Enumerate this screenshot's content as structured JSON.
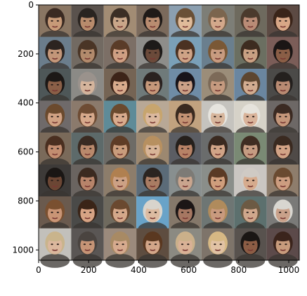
{
  "image": {
    "description_kind": "grid of generated face samples",
    "grid": {
      "rows": 8,
      "cols": 8
    }
  },
  "axes": {
    "x_ticks": [
      {
        "value": 0,
        "label": "0"
      },
      {
        "value": 200,
        "label": "200"
      },
      {
        "value": 400,
        "label": "400"
      },
      {
        "value": 600,
        "label": "600"
      },
      {
        "value": 800,
        "label": "800"
      },
      {
        "value": 1000,
        "label": "1000"
      }
    ],
    "y_ticks": [
      {
        "value": 0,
        "label": "0"
      },
      {
        "value": 200,
        "label": "200"
      },
      {
        "value": 400,
        "label": "400"
      },
      {
        "value": 600,
        "label": "600"
      },
      {
        "value": 800,
        "label": "800"
      },
      {
        "value": 1000,
        "label": "1000"
      }
    ],
    "range": {
      "x": [
        0,
        1042
      ],
      "y": [
        0,
        1042
      ]
    },
    "y_inverted": true
  },
  "palette": {
    "grid_line": "#1a1a1a",
    "axis": "#000000",
    "tile_colors": [
      [
        "#8a7663",
        "#5a524d",
        "#a28c74",
        "#7b6a5c",
        "#8b9fb0",
        "#7d7e77",
        "#6e6a5e",
        "#5c4a43"
      ],
      [
        "#6b7d8c",
        "#726a62",
        "#7c6f66",
        "#8e8d8a",
        "#7aa0b8",
        "#6a7f8e",
        "#6b6f61",
        "#7b5d58"
      ],
      [
        "#4e5758",
        "#8b8a86",
        "#756454",
        "#6f7a7a",
        "#6f8ca6",
        "#9b8d79",
        "#6a86a0",
        "#4b4a48"
      ],
      [
        "#6f6a6a",
        "#8b7a6c",
        "#5e8b98",
        "#b8a896",
        "#c1a27f",
        "#c5c3be",
        "#d6d2c8",
        "#6d6866"
      ],
      [
        "#7a6a5a",
        "#5d6a6a",
        "#6d6b66",
        "#9c8870",
        "#5b5d63",
        "#6a6c6c",
        "#7a8a74",
        "#4f4a47"
      ],
      [
        "#3d3a38",
        "#6a6460",
        "#8d7d6b",
        "#5b6b78",
        "#888f8f",
        "#8a8e8a",
        "#cac6c2",
        "#8e7d6c"
      ],
      [
        "#6a5a4e",
        "#4a4a48",
        "#6f6a5e",
        "#69a3c8",
        "#85786a",
        "#6e7674",
        "#5c706e",
        "#7a7a78"
      ],
      [
        "#c2c0bb",
        "#5a5654",
        "#9b8a7c",
        "#5e4d40",
        "#8b8a82",
        "#7e746a",
        "#58524e",
        "#5c4a4a"
      ]
    ],
    "face_colors": [
      [
        "#c79a78",
        "#b88b6c",
        "#c9a689",
        "#b98c70",
        "#e0bb9a",
        "#d3a88b",
        "#b98b76",
        "#d8a787"
      ],
      [
        "#c39679",
        "#b28a6c",
        "#cf9f83",
        "#6b4a3a",
        "#cfa386",
        "#c89b80",
        "#c9a083",
        "#8a5e46"
      ],
      [
        "#8a5f47",
        "#d4b49c",
        "#d8ab8c",
        "#c6987a",
        "#cba187",
        "#c59a7f",
        "#d2ac90",
        "#b88a72"
      ],
      [
        "#d0a183",
        "#d6a98c",
        "#d8ab8d",
        "#dbb89e",
        "#c39273",
        "#d7b69c",
        "#d9b39a",
        "#c4967a"
      ],
      [
        "#c28d70",
        "#b9896c",
        "#c99c7c",
        "#d8b598",
        "#b78266",
        "#d1a487",
        "#c59c82",
        "#d2a386"
      ],
      [
        "#6b4634",
        "#b7846a",
        "#cca185",
        "#a97c63",
        "#c9a58e",
        "#cf9e7c",
        "#d6ab8d",
        "#cc9d80"
      ],
      [
        "#c99576",
        "#d6a384",
        "#d4a88a",
        "#dcbba1",
        "#a67762",
        "#c89a7e",
        "#d0a78c",
        "#c9a18a"
      ],
      [
        "#dbb79d",
        "#c69476",
        "#d6aa8e",
        "#d2a689",
        "#d9b196",
        "#e1c2a4",
        "#8c5d45",
        "#c79b7c"
      ]
    ],
    "hair_colors": [
      [
        "#3a2a22",
        "#2a2420",
        "#3b2e25",
        "#1f1a18",
        "#6a5036",
        "#7b654e",
        "#4b3a2d",
        "#3a2419"
      ],
      [
        "#2c2420",
        "#4a3526",
        "#5a3c28",
        "#1d1a19",
        "#4b3222",
        "#7a5836",
        "#3d2c20",
        "#1b1615"
      ],
      [
        "#1c1816",
        "#9a928c",
        "#3d2418",
        "#2a2220",
        "#18141a",
        "#7c6a58",
        "#5d4630",
        "#24201e"
      ],
      [
        "#6b4a2e",
        "#6e4c34",
        "#6a4a2e",
        "#c7a56e",
        "#3a2a20",
        "#e6e4de",
        "#e6e3dc",
        "#3b2a22"
      ],
      [
        "#4a2f20",
        "#3a2b22",
        "#5e3c26",
        "#b79060",
        "#26201c",
        "#3a2a20",
        "#3f2d22",
        "#3a2a20"
      ],
      [
        "#1a1614",
        "#3b2a20",
        "#b08050",
        "#2b2420",
        "#7d7b76",
        "#5a3a25",
        "#cfcac4",
        "#6a4a30"
      ],
      [
        "#7a5030",
        "#3a2518",
        "#6a4930",
        "#d8d4cc",
        "#1c1616",
        "#b08b5c",
        "#6c5a44",
        "#d8d6d0"
      ],
      [
        "#c9b48c",
        "#4a4440",
        "#a88a64",
        "#5a3820",
        "#cbb08a",
        "#d6b884",
        "#1a1614",
        "#3b241c"
      ]
    ]
  }
}
